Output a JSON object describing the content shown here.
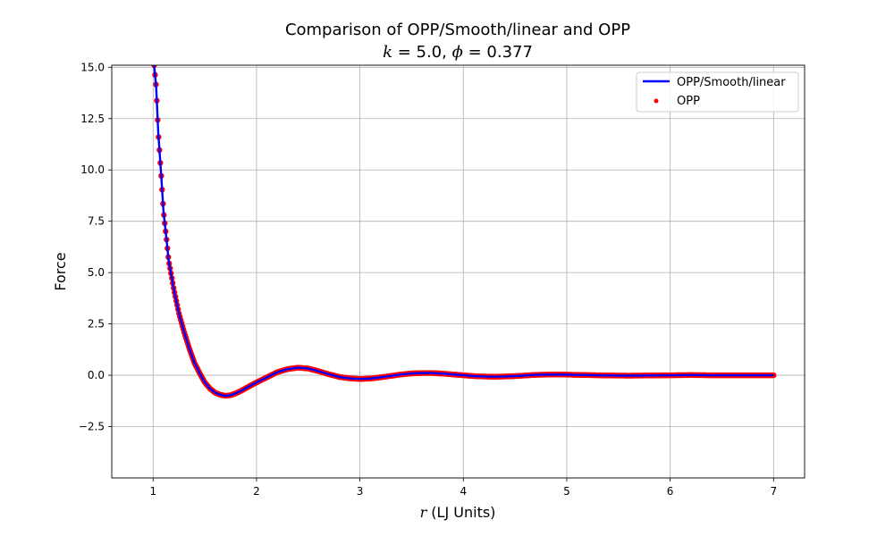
{
  "chart_data": {
    "type": "line",
    "title_line1": "Comparison of OPP/Smooth/linear and OPP",
    "title_line2": {
      "k_symbol": "k",
      "k_value": " = 5.0, ",
      "phi_symbol": "ϕ",
      "phi_value": " = 0.377"
    },
    "xlabel": {
      "symbol": "r",
      "text": " (LJ Units)"
    },
    "ylabel": "Force",
    "xlim": [
      0.6,
      7.3
    ],
    "ylim": [
      -5.0,
      15.1
    ],
    "x_ticks": [
      1,
      2,
      3,
      4,
      5,
      6,
      7
    ],
    "x_tick_labels": [
      "1",
      "2",
      "3",
      "4",
      "5",
      "6",
      "7"
    ],
    "y_ticks": [
      -2.5,
      0.0,
      2.5,
      5.0,
      7.5,
      10.0,
      12.5,
      15.0
    ],
    "y_tick_labels": [
      "−2.5",
      "0.0",
      "2.5",
      "5.0",
      "7.5",
      "10.0",
      "12.5",
      "15.0"
    ],
    "grid": true,
    "legend_position": "top-right",
    "series": [
      {
        "name": "OPP/Smooth/linear",
        "kind": "line",
        "color": "#0000ff",
        "x": [
          1.01,
          1.03,
          1.05,
          1.08,
          1.1,
          1.13,
          1.15,
          1.2,
          1.25,
          1.3,
          1.35,
          1.4,
          1.45,
          1.5,
          1.55,
          1.6,
          1.65,
          1.7,
          1.75,
          1.8,
          1.85,
          1.9,
          1.95,
          2.0,
          2.1,
          2.2,
          2.3,
          2.4,
          2.5,
          2.6,
          2.7,
          2.8,
          2.9,
          3.0,
          3.1,
          3.2,
          3.3,
          3.4,
          3.5,
          3.6,
          3.7,
          3.8,
          3.9,
          4.0,
          4.1,
          4.2,
          4.3,
          4.4,
          4.5,
          4.6,
          4.7,
          4.8,
          4.9,
          5.0,
          5.2,
          5.4,
          5.6,
          5.8,
          6.0,
          6.2,
          6.4,
          6.6,
          6.8,
          7.0
        ],
        "y": [
          15.1,
          14.0,
          11.8,
          9.6,
          8.0,
          6.6,
          5.6,
          4.2,
          3.0,
          2.1,
          1.3,
          0.6,
          0.1,
          -0.35,
          -0.65,
          -0.85,
          -0.95,
          -1.0,
          -0.97,
          -0.88,
          -0.76,
          -0.62,
          -0.48,
          -0.35,
          -0.1,
          0.15,
          0.3,
          0.37,
          0.33,
          0.2,
          0.05,
          -0.08,
          -0.15,
          -0.18,
          -0.16,
          -0.1,
          -0.03,
          0.04,
          0.09,
          0.11,
          0.11,
          0.08,
          0.04,
          0.0,
          -0.04,
          -0.06,
          -0.07,
          -0.06,
          -0.04,
          -0.01,
          0.02,
          0.03,
          0.04,
          0.03,
          0.01,
          -0.01,
          -0.02,
          -0.01,
          0.0,
          0.01,
          0.0,
          0.0,
          0.0,
          0.0
        ]
      },
      {
        "name": "OPP",
        "kind": "scatter",
        "color": "#ff0000"
      }
    ]
  }
}
